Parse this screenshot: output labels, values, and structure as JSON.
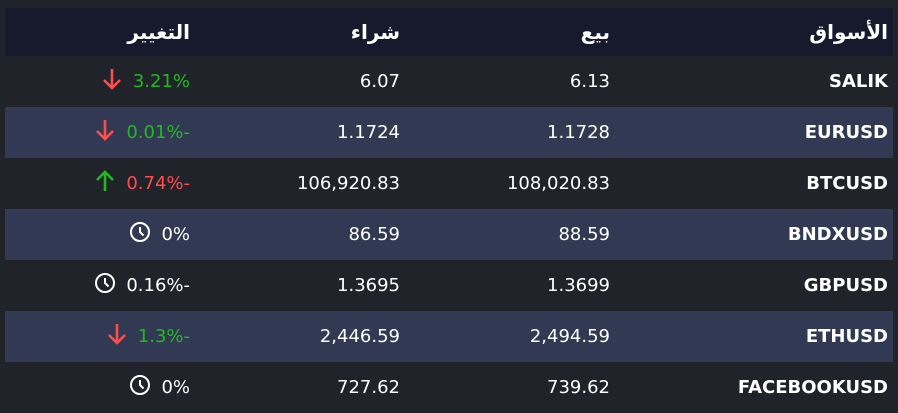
{
  "header": {
    "markets": "الأسواق",
    "sell": "بيع",
    "buy": "شراء",
    "change": "التغيير"
  },
  "colors": {
    "up": "#22b822",
    "down": "#ff4d4d",
    "neutral": "#ffffff"
  },
  "rows": [
    {
      "market": "SALIK",
      "sell": "6.13",
      "buy": "6.07",
      "change": "3.21%",
      "icon": "arrow-down-icon",
      "change_color": "#22b822"
    },
    {
      "market": "EURUSD",
      "sell": "1.1728",
      "buy": "1.1724",
      "change": "0.01%-",
      "icon": "arrow-down-icon",
      "change_color": "#22b822"
    },
    {
      "market": "BTCUSD",
      "sell": "108,020.83",
      "buy": "106,920.83",
      "change": "0.74%-",
      "icon": "arrow-up-icon",
      "change_color": "#ff4d4d"
    },
    {
      "market": "BNDXUSD",
      "sell": "88.59",
      "buy": "86.59",
      "change": "0%",
      "icon": "clock-icon",
      "change_color": "#ffffff"
    },
    {
      "market": "GBPUSD",
      "sell": "1.3699",
      "buy": "1.3695",
      "change": "0.16%-",
      "icon": "clock-icon",
      "change_color": "#ffffff"
    },
    {
      "market": "ETHUSD",
      "sell": "2,494.59",
      "buy": "2,446.59",
      "change": "1.3%-",
      "icon": "arrow-down-icon",
      "change_color": "#22b822"
    },
    {
      "market": "FACEBOOKUSD",
      "sell": "739.62",
      "buy": "727.62",
      "change": "0%",
      "icon": "clock-icon",
      "change_color": "#ffffff"
    }
  ]
}
